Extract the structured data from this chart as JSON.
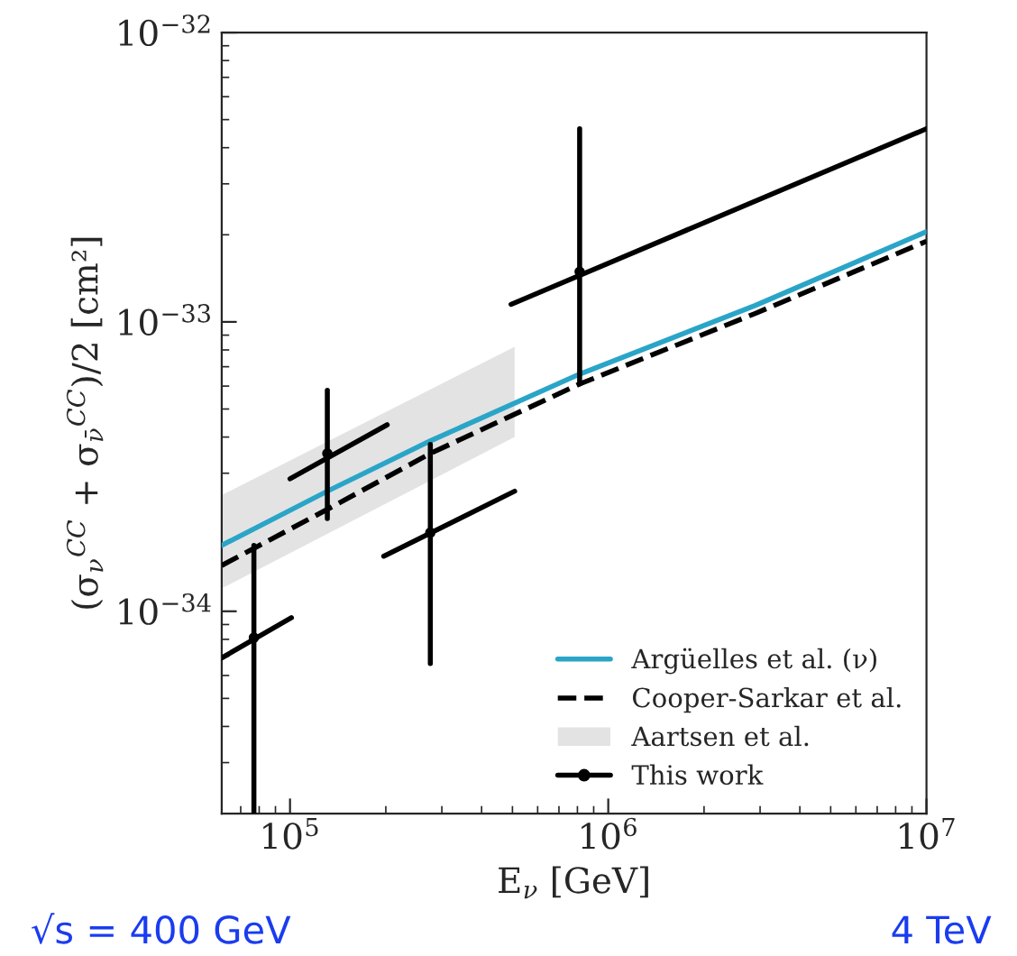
{
  "chart_data": {
    "type": "line",
    "xlabel": "E$_{ν}$ [GeV]",
    "ylabel": "(σ$_{ν}$$^{CC}$ + σ$_{ν̄}$$^{CC}$)/2 [cm²]",
    "log": "xy",
    "xlim": [
      61000,
      10000000
    ],
    "ylim": [
      2e-35,
      1e-32
    ],
    "xticks": [
      {
        "value": 100000,
        "label": "10$^{5}$"
      },
      {
        "value": 1000000,
        "label": "10$^{6}$"
      },
      {
        "value": 10000000,
        "label": "10$^{7}$"
      }
    ],
    "yticks": [
      {
        "value": 1e-34,
        "label": "10$^{−34}$"
      },
      {
        "value": 1e-33,
        "label": "10$^{−33}$"
      },
      {
        "value": 1e-32,
        "label": "10$^{−32}$"
      }
    ],
    "grid": false,
    "legend": "bottom right",
    "series": [
      {
        "name": "Argüelles et al. (ν)",
        "color": "#2aa5c8",
        "line_style": "solid",
        "x": [
          61000,
          131000,
          276000,
          813000,
          2900000,
          10000000
        ],
        "values": [
          1.69e-34,
          2.6e-34,
          3.88e-34,
          6.6e-34,
          1.14e-33,
          2.05e-33
        ]
      },
      {
        "name": "Cooper-Sarkar et al.",
        "color": "#000000",
        "line_style": "dashed",
        "x": [
          61000,
          131000,
          276000,
          813000,
          2900000,
          10000000
        ],
        "values": [
          1.44e-34,
          2.25e-34,
          3.51e-34,
          6.1e-34,
          1.07e-33,
          1.9e-33
        ]
      },
      {
        "name": "Aartsen et al.",
        "type": "area",
        "color": "#e3e3e3",
        "x": [
          61000,
          508000
        ],
        "values": [
          null,
          null
        ],
        "lower": [
          1.2e-34,
          4e-34
        ],
        "upper": [
          2.52e-34,
          8.2e-34
        ]
      },
      {
        "name": "This work",
        "type": "scatter",
        "color": "#000000",
        "marker": "circle",
        "x": [
          77000,
          131000,
          276000,
          813000
        ],
        "values": [
          8.1e-35,
          3.51e-34,
          1.87e-34,
          1.49e-33
        ],
        "errors": [
          [
            2e-35,
            1.69e-34
          ],
          [
            2.09e-34,
            5.8e-34
          ],
          [
            6.6e-35,
            3.77e-34
          ],
          [
            6.1e-34,
            4.65e-33
          ]
        ]
      },
      {
        "color": "#000000",
        "line_style": "solid",
        "x": [
          61000,
          101000
        ],
        "values": [
          6.9e-35,
          9.5e-35
        ]
      },
      {
        "color": "#000000",
        "line_style": "solid",
        "x": [
          100000,
          202000
        ],
        "values": [
          2.87e-34,
          4.41e-34
        ]
      },
      {
        "color": "#000000",
        "line_style": "solid",
        "x": [
          197000,
          508000
        ],
        "values": [
          1.55e-34,
          2.6e-34
        ]
      },
      {
        "color": "#000000",
        "line_style": "solid",
        "x": [
          495000,
          10000000
        ],
        "values": [
          1.15e-33,
          4.65e-33
        ]
      }
    ],
    "annotations": [
      "√s = 400 GeV",
      "4 TeV"
    ]
  }
}
